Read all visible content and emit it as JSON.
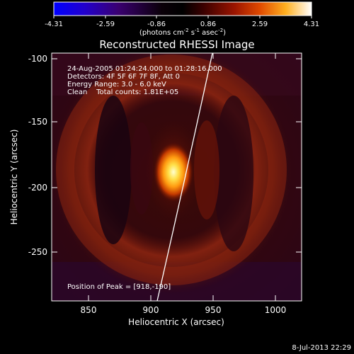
{
  "colorbar": {
    "ticks": [
      "-4.31",
      "-2.59",
      "-0.86",
      "0.86",
      "2.59",
      "4.31"
    ],
    "units_main": "(photons cm",
    "units_exp1": "-2",
    "units_mid": " s",
    "units_exp2": "-1",
    "units_end": " asec",
    "units_exp3": "-2",
    "units_close": ")",
    "colors": [
      "#0000ff",
      "#2a00c8",
      "#3a0060",
      "#000000",
      "#3a0000",
      "#8a0a00",
      "#d23a00",
      "#ff8a00",
      "#ffd24a",
      "#ffffff"
    ]
  },
  "title": "Reconstructed RHESSI Image",
  "annotations": {
    "time_range": "24-Aug-2005 01:24:24.000 to 01:28:16.000",
    "detectors": "Detectors: 4F 5F 6F 7F 8F, Att 0",
    "energy": "Energy Range: 3.0 - 6.0 keV",
    "clean": "Clean    Total counts: 1.81E+05",
    "peak": "Position of Peak = [918,-190]"
  },
  "axes": {
    "xlabel": "Heliocentric X (arcsec)",
    "ylabel": "Heliocentric Y (arcsec)",
    "xticks": [
      "850",
      "900",
      "950",
      "1000"
    ],
    "yticks": [
      "-100",
      "-150",
      "-200",
      "-250"
    ]
  },
  "footer": {
    "timestamp": "8-Jul-2013 22:29"
  }
}
